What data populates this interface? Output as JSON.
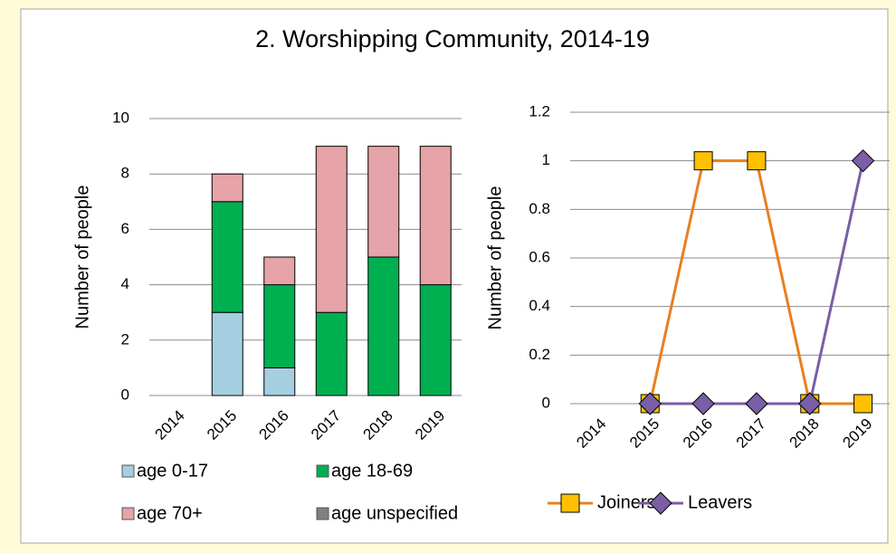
{
  "title": "2. Worshipping Community, 2014-19",
  "chart_data": [
    {
      "type": "bar",
      "stacked": true,
      "ylabel": "Number of people",
      "categories": [
        "2014",
        "2015",
        "2016",
        "2017",
        "2018",
        "2019"
      ],
      "series": [
        {
          "name": "age 0-17",
          "color": "#a5cfe0",
          "values": [
            0,
            3,
            1,
            0,
            0,
            0
          ]
        },
        {
          "name": "age 18-69",
          "color": "#00b050",
          "values": [
            0,
            4,
            3,
            3,
            5,
            4
          ]
        },
        {
          "name": "age 70+",
          "color": "#e6a3a8",
          "values": [
            0,
            1,
            1,
            6,
            4,
            5
          ]
        },
        {
          "name": "age unspecified",
          "color": "#808080",
          "values": [
            0,
            0,
            0,
            0,
            0,
            0
          ]
        }
      ],
      "ylim": [
        0,
        10
      ],
      "yticks": [
        0,
        2,
        4,
        6,
        8,
        10
      ],
      "grid": true
    },
    {
      "type": "line",
      "ylabel": "Number of people",
      "categories": [
        "2014",
        "2015",
        "2016",
        "2017",
        "2018",
        "2019"
      ],
      "series": [
        {
          "name": "Joiners",
          "color": "#e8801e",
          "marker_color": "#ffc000",
          "marker": "square",
          "values": [
            null,
            0,
            1,
            1,
            0,
            0
          ]
        },
        {
          "name": "Leavers",
          "color": "#7a5ea6",
          "marker_color": "#7a5ea6",
          "marker": "diamond",
          "values": [
            null,
            0,
            0,
            0,
            0,
            1
          ]
        }
      ],
      "ylim": [
        0,
        1.2
      ],
      "yticks": [
        0,
        0.2,
        0.4,
        0.6,
        0.8,
        1,
        1.2
      ],
      "grid": true
    }
  ]
}
